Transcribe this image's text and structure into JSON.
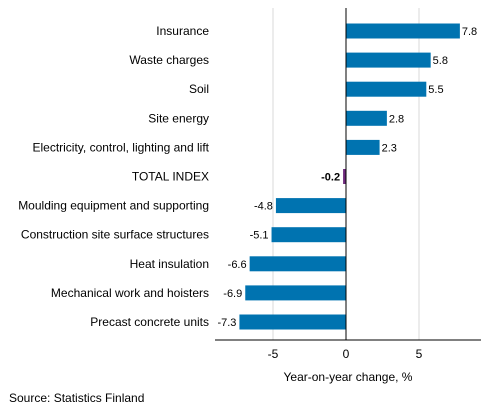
{
  "chart_data": {
    "type": "bar",
    "orientation": "horizontal",
    "categories": [
      "Insurance",
      "Waste charges",
      "Soil",
      "Site energy",
      "Electricity, control, lighting and lift",
      "TOTAL INDEX",
      "Moulding equipment and supporting",
      "Construction site surface structures",
      "Heat insulation",
      "Mechanical work and hoisters",
      "Precast concrete units"
    ],
    "values": [
      7.8,
      5.8,
      5.5,
      2.8,
      2.3,
      -0.2,
      -4.8,
      -5.1,
      -6.6,
      -6.9,
      -7.3
    ],
    "value_labels": [
      "7.8",
      "5.8",
      "5.5",
      "2.8",
      "2.3",
      "-0.2",
      "-4.8",
      "-5.1",
      "-6.6",
      "-6.9",
      "-7.3"
    ],
    "highlight_category": "TOTAL INDEX",
    "xlabel": "Year-on-year change, %",
    "ylabel": "",
    "title": "",
    "xlim": [
      -10,
      10
    ],
    "xticks": [
      -5,
      0,
      5
    ],
    "xtick_labels": [
      "-5",
      "0",
      "5"
    ],
    "grid": "vertical",
    "legend": "none",
    "colors": {
      "bar": "#0073b0",
      "highlight": "#6e2a7c",
      "grid": "#d9d9d9",
      "axis": "#000000"
    }
  },
  "footer": {
    "source": "Source: Statistics Finland"
  }
}
